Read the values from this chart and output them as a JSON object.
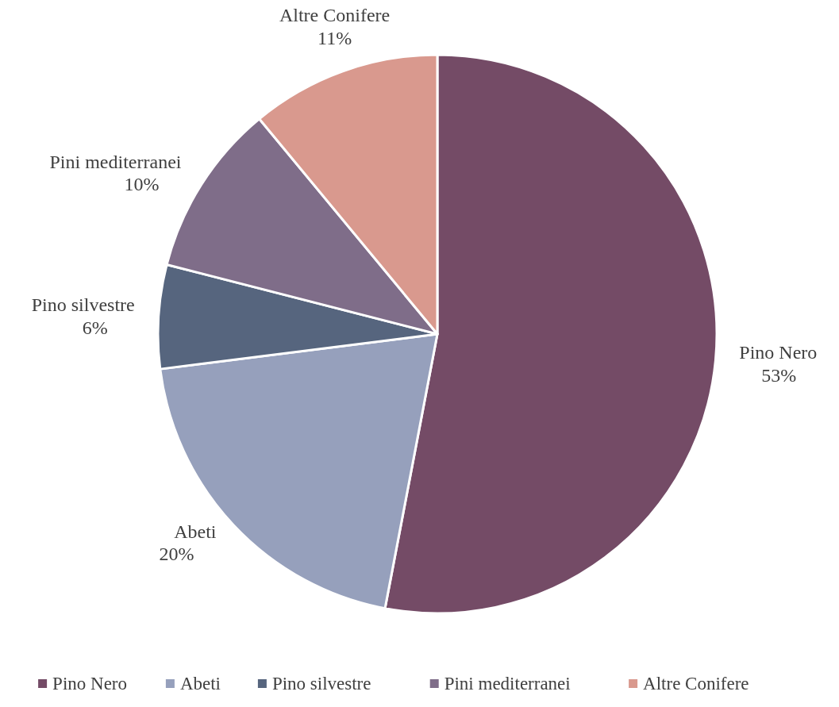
{
  "chart_data": {
    "type": "pie",
    "categories": [
      "Pino Nero",
      "Abeti",
      "Pino silvestre",
      "Pini mediterranei",
      "Altre Conifere"
    ],
    "values": [
      53,
      20,
      6,
      10,
      11
    ],
    "value_labels": [
      "53%",
      "20%",
      "6%",
      "10%",
      "11%"
    ],
    "colors": [
      "#744b66",
      "#96a0bc",
      "#56657e",
      "#7f6d89",
      "#d9998e"
    ],
    "legend": "bottom"
  }
}
